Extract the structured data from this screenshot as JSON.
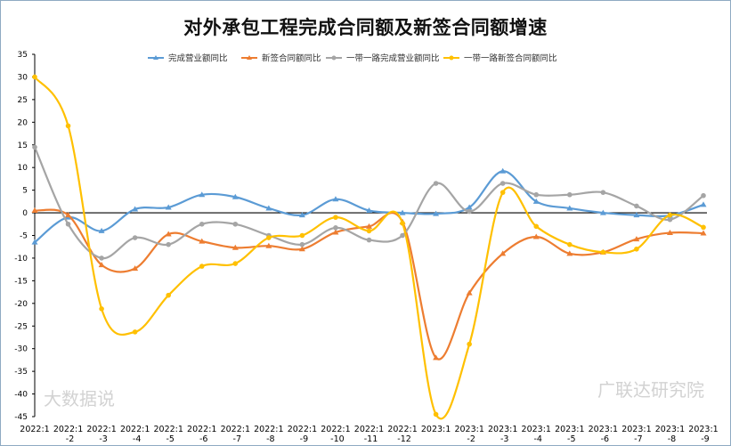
{
  "chart_data": {
    "type": "line",
    "title": "对外承包工程完成合同额及新签合同额增速",
    "categories": [
      [
        "2022:1",
        ""
      ],
      [
        "2022:1",
        "-2"
      ],
      [
        "2022:1",
        "-3"
      ],
      [
        "2022:1",
        "-4"
      ],
      [
        "2022:1",
        "-5"
      ],
      [
        "2022:1",
        "-6"
      ],
      [
        "2022:1",
        "-7"
      ],
      [
        "2022:1",
        "-8"
      ],
      [
        "2022:1",
        "-9"
      ],
      [
        "2022:1",
        "-10"
      ],
      [
        "2022:1",
        "-11"
      ],
      [
        "2022:1",
        "-12"
      ],
      [
        "2023:1",
        ""
      ],
      [
        "2023:1",
        "-2"
      ],
      [
        "2023:1",
        "-3"
      ],
      [
        "2023:1",
        "-4"
      ],
      [
        "2023:1",
        "-5"
      ],
      [
        "2023:1",
        "-6"
      ],
      [
        "2023:1",
        "-7"
      ],
      [
        "2023:1",
        "-8"
      ],
      [
        "2023:1",
        "-9"
      ]
    ],
    "ylim": [
      -45,
      35
    ],
    "yticks": [
      35,
      30,
      25,
      20,
      15,
      10,
      5,
      0,
      -5,
      -10,
      -15,
      -20,
      -25,
      -30,
      -35,
      -40,
      -45
    ],
    "grid": false,
    "legend_position": "top",
    "smooth": true,
    "series": [
      {
        "name": "完成营业额同比",
        "color": "#5b9bd5",
        "marker": "triangle",
        "values": [
          -6.5,
          -1,
          -4,
          0.8,
          1.2,
          4,
          3.5,
          1,
          -0.5,
          3,
          0.5,
          0,
          -0.2,
          1.2,
          9.2,
          2.5,
          1,
          0,
          -0.5,
          -0.6,
          1.8
        ]
      },
      {
        "name": "新签合同额同比",
        "color": "#ed7d31",
        "marker": "triangle",
        "values": [
          0.5,
          -0.5,
          -11.5,
          -12.3,
          -4.7,
          -6.3,
          -7.7,
          -7.3,
          -8,
          -4.3,
          -3,
          -2,
          -32,
          -17.7,
          -9,
          -5.3,
          -9,
          -8.7,
          -5.8,
          -4.4,
          -4.5
        ]
      },
      {
        "name": "一带一路完成营业额同比",
        "color": "#a5a5a5",
        "marker": "circle",
        "values": [
          14.5,
          -2.5,
          -10,
          -5.5,
          -7,
          -2.5,
          -2.5,
          -5,
          -7,
          -3.3,
          -6,
          -5,
          6.5,
          0.3,
          6.5,
          4,
          4,
          4.5,
          1.5,
          -1.5,
          3.8
        ]
      },
      {
        "name": "一带一路新签合同额同比",
        "color": "#ffc000",
        "marker": "circle",
        "values": [
          30,
          19.2,
          -21.2,
          -26.3,
          -18.2,
          -11.8,
          -11.2,
          -5.5,
          -5,
          -1,
          -4,
          -2.3,
          -44.5,
          -29,
          4.5,
          -3,
          -7,
          -8.7,
          -8,
          -0.5,
          -3.2
        ]
      }
    ]
  },
  "watermarks": {
    "left": "大数据说",
    "right": "广联达研究院"
  }
}
